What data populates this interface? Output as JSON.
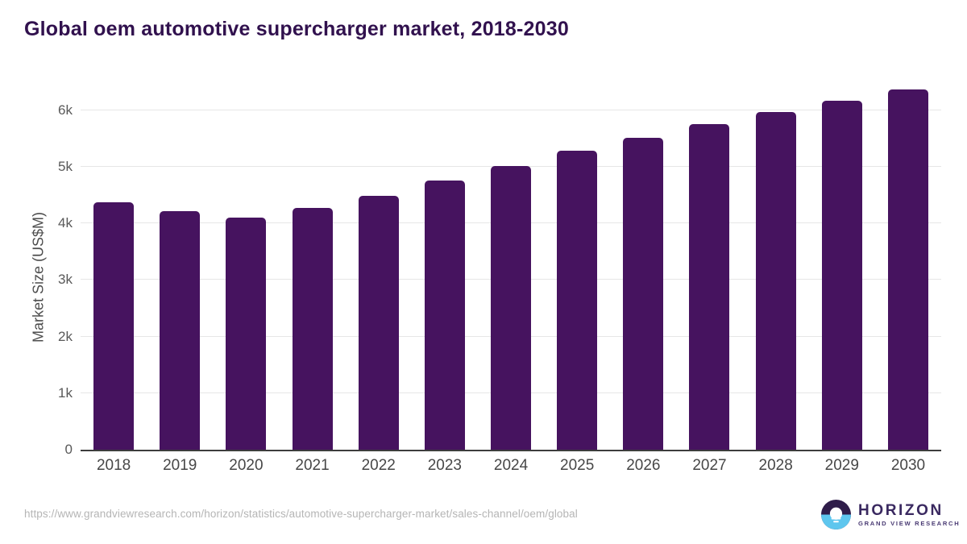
{
  "header": {
    "title": "Global oem automotive supercharger market, 2018-2030"
  },
  "chart_data": {
    "type": "bar",
    "title": "Global oem automotive supercharger market, 2018-2030",
    "xlabel": "",
    "ylabel": "Market Size (US$M)",
    "categories": [
      "2018",
      "2019",
      "2020",
      "2021",
      "2022",
      "2023",
      "2024",
      "2025",
      "2026",
      "2027",
      "2028",
      "2029",
      "2030"
    ],
    "values": [
      4380,
      4210,
      4100,
      4270,
      4490,
      4760,
      5020,
      5280,
      5520,
      5760,
      5970,
      6170,
      6370
    ],
    "unit": "US$M",
    "ylim": [
      0,
      6580
    ],
    "yticks": [
      {
        "value": 0,
        "label": "0"
      },
      {
        "value": 1000,
        "label": "1k"
      },
      {
        "value": 2000,
        "label": "2k"
      },
      {
        "value": 3000,
        "label": "3k"
      },
      {
        "value": 4000,
        "label": "4k"
      },
      {
        "value": 5000,
        "label": "5k"
      },
      {
        "value": 6000,
        "label": "6k"
      }
    ],
    "grid": "horizontal",
    "legend": "none",
    "bar_color": "#46135f",
    "axis_line_color": "#3d3d3d",
    "gridline_color": "#e6e6e6"
  },
  "footer": {
    "source_url": "https://www.grandviewresearch.com/horizon/statistics/automotive-supercharger-market/sales-channel/oem/global",
    "logo": {
      "name": "HORIZON",
      "tagline": "GRAND VIEW RESEARCH",
      "icon": "horizon-sun-circle-icon",
      "purple": "#2f1d4a",
      "blue": "#5ec6ee",
      "text_color": "#3a2960"
    }
  }
}
